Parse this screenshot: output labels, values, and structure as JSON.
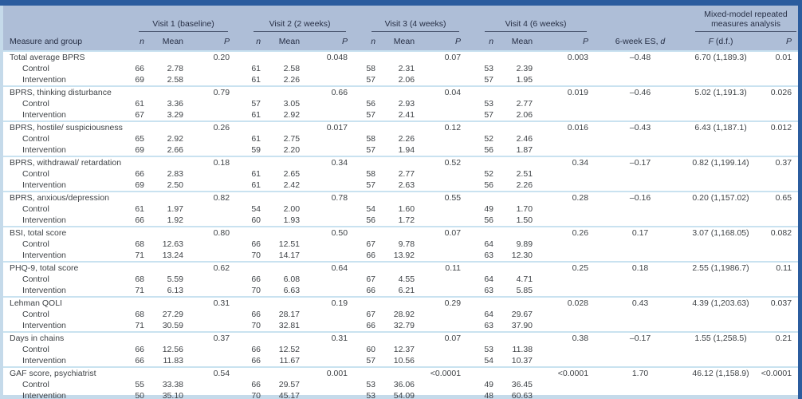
{
  "colors": {
    "navy": "#2b5c9e",
    "headerbg": "#aebed7",
    "strip": "#c5daea",
    "sep": "#c9e2f0",
    "rule": "#4f5a73",
    "hdrline": "#a3b4cc",
    "hdrtext": "#272f45",
    "bodytext": "#3f4347"
  },
  "visits": [
    "Visit 1 (baseline)",
    "Visit 2 (2 weeks)",
    "Visit 3 (4 weeks)",
    "Visit 4 (6 weeks)"
  ],
  "headers": {
    "measure": "Measure and group",
    "n": "n",
    "mean": "Mean",
    "p": "P",
    "es_prefix": "6-week ES, ",
    "es_d": "d",
    "mixed_line1": "Mixed-model repeated",
    "mixed_line2": "measures analysis",
    "f_italic": "F",
    "f_suffix": " (d.f.)"
  },
  "groups": [
    {
      "measure": "Total average BPRS",
      "visit_p": [
        "0.20",
        "0.048",
        "0.07",
        "0.003"
      ],
      "es": "–0.48",
      "f": "6.70 (1,189.3)",
      "p": "0.01",
      "rows": [
        {
          "label": "Control",
          "values": [
            "66",
            "2.78",
            "61",
            "2.58",
            "58",
            "2.31",
            "53",
            "2.39"
          ]
        },
        {
          "label": "Intervention",
          "values": [
            "69",
            "2.58",
            "61",
            "2.26",
            "57",
            "2.06",
            "57",
            "1.95"
          ]
        }
      ]
    },
    {
      "measure": "BPRS, thinking disturbance",
      "visit_p": [
        "0.79",
        "0.66",
        "0.04",
        "0.019"
      ],
      "es": "–0.46",
      "f": "5.02 (1,191.3)",
      "p": "0.026",
      "rows": [
        {
          "label": "Control",
          "values": [
            "61",
            "3.36",
            "57",
            "3.05",
            "56",
            "2.93",
            "53",
            "2.77"
          ]
        },
        {
          "label": "Intervention",
          "values": [
            "67",
            "3.29",
            "61",
            "2.92",
            "57",
            "2.41",
            "57",
            "2.06"
          ]
        }
      ]
    },
    {
      "measure": "BPRS, hostile/ suspiciousness",
      "visit_p": [
        "0.26",
        "0.017",
        "0.12",
        "0.016"
      ],
      "es": "–0.43",
      "f": "6.43 (1,187.1)",
      "p": "0.012",
      "rows": [
        {
          "label": "Control",
          "values": [
            "65",
            "2.92",
            "61",
            "2.75",
            "58",
            "2.26",
            "52",
            "2.46"
          ]
        },
        {
          "label": "Intervention",
          "values": [
            "69",
            "2.66",
            "59",
            "2.20",
            "57",
            "1.94",
            "56",
            "1.87"
          ]
        }
      ]
    },
    {
      "measure": "BPRS, withdrawal/ retardation",
      "visit_p": [
        "0.18",
        "0.34",
        "0.52",
        "0.34"
      ],
      "es": "–0.17",
      "f": "0.82 (1,199.14)",
      "p": "0.37",
      "rows": [
        {
          "label": "Control",
          "values": [
            "66",
            "2.83",
            "61",
            "2.65",
            "58",
            "2.77",
            "52",
            "2.51"
          ]
        },
        {
          "label": "Intervention",
          "values": [
            "69",
            "2.50",
            "61",
            "2.42",
            "57",
            "2.63",
            "56",
            "2.26"
          ]
        }
      ]
    },
    {
      "measure": "BPRS, anxious/depression",
      "visit_p": [
        "0.82",
        "0.78",
        "0.55",
        "0.28"
      ],
      "es": "–0.16",
      "f": "0.20 (1,157.02)",
      "p": "0.65",
      "rows": [
        {
          "label": "Control",
          "values": [
            "61",
            "1.97",
            "54",
            "2.00",
            "54",
            "1.60",
            "49",
            "1.70"
          ]
        },
        {
          "label": "Intervention",
          "values": [
            "66",
            "1.92",
            "60",
            "1.93",
            "56",
            "1.72",
            "56",
            "1.50"
          ]
        }
      ]
    },
    {
      "measure": "BSI, total score",
      "visit_p": [
        "0.80",
        "0.50",
        "0.07",
        "0.26"
      ],
      "es": "0.17",
      "f": "3.07 (1,168.05)",
      "p": "0.082",
      "rows": [
        {
          "label": "Control",
          "values": [
            "68",
            "12.63",
            "66",
            "12.51",
            "67",
            "9.78",
            "64",
            "9.89"
          ]
        },
        {
          "label": "Intervention",
          "values": [
            "71",
            "13.24",
            "70",
            "14.17",
            "66",
            "13.92",
            "63",
            "12.30"
          ]
        }
      ]
    },
    {
      "measure": "PHQ-9, total score",
      "visit_p": [
        "0.62",
        "0.64",
        "0.11",
        "0.25"
      ],
      "es": "0.18",
      "f": "2.55 (1,1986.7)",
      "p": "0.11",
      "rows": [
        {
          "label": "Control",
          "values": [
            "68",
            "5.59",
            "66",
            "6.08",
            "67",
            "4.55",
            "64",
            "4.71"
          ]
        },
        {
          "label": "Intervention",
          "values": [
            "71",
            "6.13",
            "70",
            "6.63",
            "66",
            "6.21",
            "63",
            "5.85"
          ]
        }
      ]
    },
    {
      "measure": "Lehman QOLI",
      "visit_p": [
        "0.31",
        "0.19",
        "0.29",
        "0.028"
      ],
      "es": "0.43",
      "f": "4.39 (1,203.63)",
      "p": "0.037",
      "rows": [
        {
          "label": "Control",
          "values": [
            "68",
            "27.29",
            "66",
            "28.17",
            "67",
            "28.92",
            "64",
            "29.67"
          ]
        },
        {
          "label": "Intervention",
          "values": [
            "71",
            "30.59",
            "70",
            "32.81",
            "66",
            "32.79",
            "63",
            "37.90"
          ]
        }
      ]
    },
    {
      "measure": "Days in chains",
      "visit_p": [
        "0.37",
        "0.31",
        "0.07",
        "0.38"
      ],
      "es": "–0.17",
      "f": "1.55 (1,258.5)",
      "p": "0.21",
      "rows": [
        {
          "label": "Control",
          "values": [
            "66",
            "12.56",
            "66",
            "12.52",
            "60",
            "12.37",
            "53",
            "11.38"
          ]
        },
        {
          "label": "Intervention",
          "values": [
            "66",
            "11.83",
            "66",
            "11.67",
            "57",
            "10.56",
            "54",
            "10.37"
          ]
        }
      ]
    },
    {
      "measure": "GAF score, psychiatrist",
      "visit_p": [
        "0.54",
        "0.001",
        "<0.0001",
        "<0.0001"
      ],
      "es": "1.70",
      "f": "46.12 (1,158.9)",
      "p": "<0.0001",
      "rows": [
        {
          "label": "Control",
          "values": [
            "55",
            "33.38",
            "66",
            "29.57",
            "53",
            "36.06",
            "49",
            "36.45"
          ]
        },
        {
          "label": "Intervention",
          "values": [
            "50",
            "35.10",
            "70",
            "45.17",
            "53",
            "54.09",
            "48",
            "60.63"
          ]
        }
      ]
    }
  ]
}
